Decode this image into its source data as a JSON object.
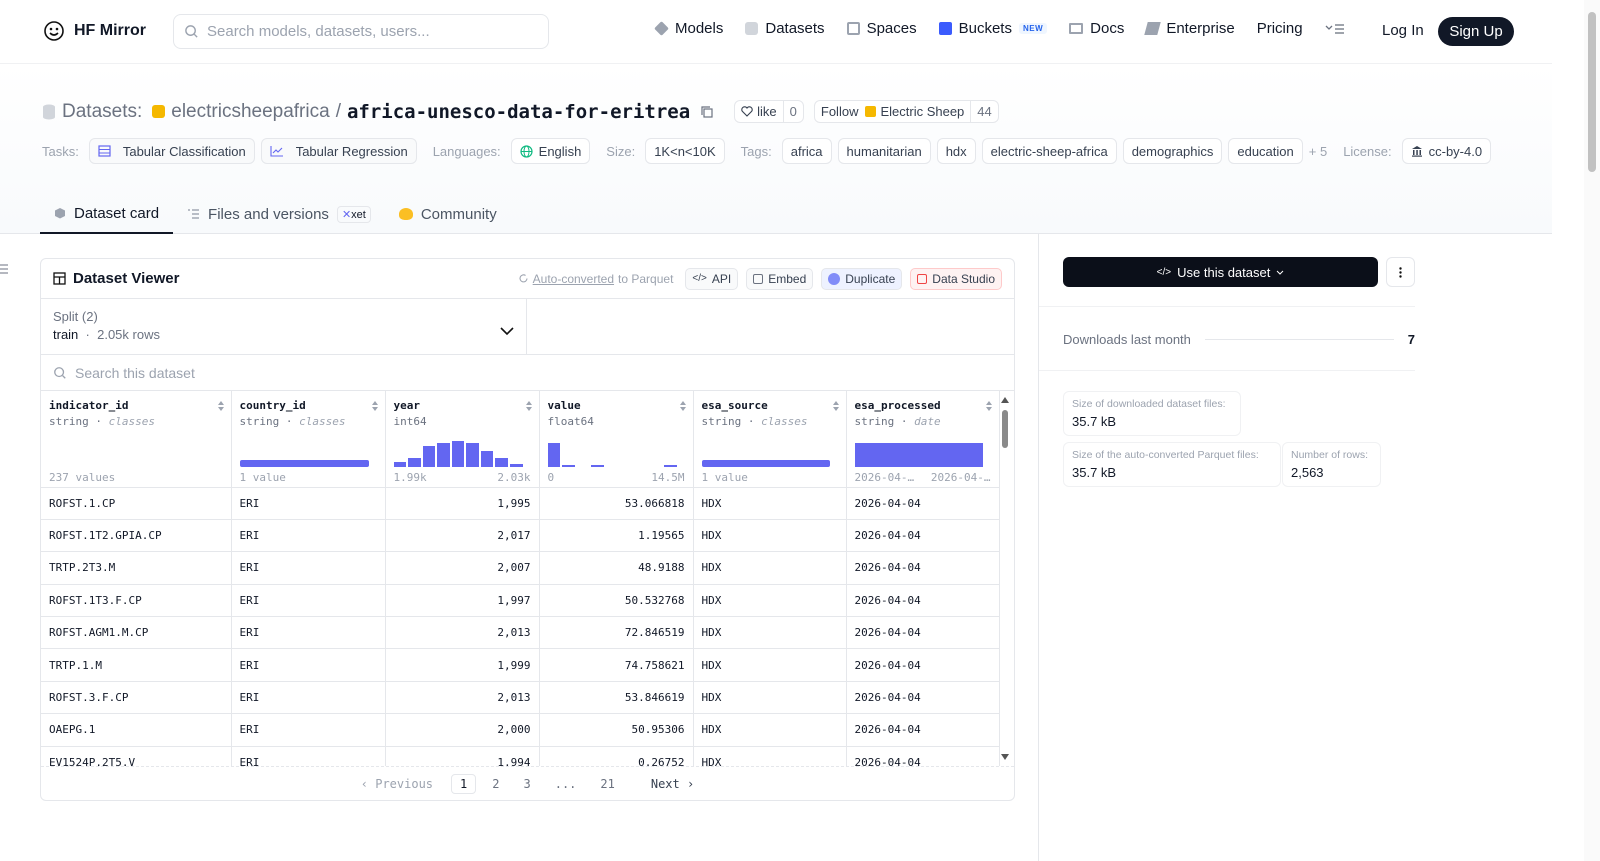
{
  "nav": {
    "brand": "HF Mirror",
    "search_placeholder": "Search models, datasets, users...",
    "links": [
      {
        "label": "Models",
        "icon": "models-icon"
      },
      {
        "label": "Datasets",
        "icon": "datasets-icon"
      },
      {
        "label": "Spaces",
        "icon": "spaces-icon"
      },
      {
        "label": "Buckets",
        "icon": "buckets-icon",
        "badge": "NEW"
      },
      {
        "label": "Docs",
        "icon": "docs-icon"
      },
      {
        "label": "Enterprise",
        "icon": "enterprise-icon"
      },
      {
        "label": "Pricing"
      }
    ],
    "login": "Log In",
    "signup": "Sign Up"
  },
  "header": {
    "section_label": "Datasets:",
    "owner": "electricsheepafrica",
    "separator": "/",
    "name": "africa-unesco-data-for-eritrea",
    "like_label": "like",
    "like_count": "0",
    "follow_label": "Follow",
    "follow_org": "Electric Sheep",
    "follow_count": "44"
  },
  "tags": {
    "tasks_label": "Tasks:",
    "tasks": [
      "Tabular Classification",
      "Tabular Regression"
    ],
    "languages_label": "Languages:",
    "language": "English",
    "size_label": "Size:",
    "size": "1K<n<10K",
    "tags_label": "Tags:",
    "tags": [
      "africa",
      "humanitarian",
      "hdx",
      "electric-sheep-africa",
      "demographics",
      "education"
    ],
    "more": "+ 5",
    "license_label": "License:",
    "license": "cc-by-4.0"
  },
  "tabs": [
    {
      "label": "Dataset card",
      "active": true
    },
    {
      "label": "Files and versions",
      "badge": "xet"
    },
    {
      "label": "Community"
    }
  ],
  "viewer": {
    "title": "Dataset Viewer",
    "auto_converted": "Auto-converted",
    "to_parquet": "to Parquet",
    "api": "API",
    "embed": "Embed",
    "duplicate": "Duplicate",
    "data_studio": "Data Studio",
    "split_label": "Split (2)",
    "split_name": "train",
    "split_rows": "2.05k rows",
    "search_placeholder": "Search this dataset",
    "columns": [
      {
        "name": "indicator_id",
        "type": "string",
        "kind": "classes",
        "foot_left": "237 values",
        "foot_right": ""
      },
      {
        "name": "country_id",
        "type": "string",
        "kind": "classes",
        "foot_left": "1 value",
        "foot_right": ""
      },
      {
        "name": "year",
        "type": "int64",
        "kind": "",
        "foot_left": "1.99k",
        "foot_right": "2.03k"
      },
      {
        "name": "value",
        "type": "float64",
        "kind": "",
        "foot_left": "0",
        "foot_right": "14.5M"
      },
      {
        "name": "esa_source",
        "type": "string",
        "kind": "classes",
        "foot_left": "1 value",
        "foot_right": ""
      },
      {
        "name": "esa_processed",
        "type": "string",
        "kind": "date",
        "foot_left": "2026-04-…",
        "foot_right": "2026-04-…"
      }
    ],
    "year_hist": [
      0.15,
      0.3,
      0.75,
      0.85,
      0.9,
      0.85,
      0.55,
      0.3,
      0.1
    ],
    "value_hist": [
      0.85,
      0.06,
      0.0,
      0.05,
      0.0,
      0.0,
      0.0,
      0.0,
      0.04
    ],
    "rows": [
      [
        "ROFST.1.CP",
        "ERI",
        "1,995",
        "53.066818",
        "HDX",
        "2026-04-04"
      ],
      [
        "ROFST.1T2.GPIA.CP",
        "ERI",
        "2,017",
        "1.19565",
        "HDX",
        "2026-04-04"
      ],
      [
        "TRTP.2T3.M",
        "ERI",
        "2,007",
        "48.9188",
        "HDX",
        "2026-04-04"
      ],
      [
        "ROFST.1T3.F.CP",
        "ERI",
        "1,997",
        "50.532768",
        "HDX",
        "2026-04-04"
      ],
      [
        "ROFST.AGM1.M.CP",
        "ERI",
        "2,013",
        "72.846519",
        "HDX",
        "2026-04-04"
      ],
      [
        "TRTP.1.M",
        "ERI",
        "1,999",
        "74.758621",
        "HDX",
        "2026-04-04"
      ],
      [
        "ROFST.3.F.CP",
        "ERI",
        "2,013",
        "53.846619",
        "HDX",
        "2026-04-04"
      ],
      [
        "OAEPG.1",
        "ERI",
        "2,000",
        "50.95306",
        "HDX",
        "2026-04-04"
      ],
      [
        "EV1524P.2T5.V",
        "ERI",
        "1,994",
        "0.26752",
        "HDX",
        "2026-04-04"
      ]
    ],
    "pager": {
      "prev": "Previous",
      "pages": [
        "1",
        "2",
        "3",
        "...",
        "21"
      ],
      "next": "Next"
    }
  },
  "sidebar": {
    "use_dataset": "Use this dataset",
    "downloads_label": "Downloads last month",
    "downloads_value": "7",
    "stats": [
      {
        "label": "Size of downloaded dataset files:",
        "value": "35.7 kB"
      },
      {
        "label": "Size of the auto-converted Parquet files:",
        "value": "35.7 kB"
      },
      {
        "label": "Number of rows:",
        "value": "2,563"
      }
    ]
  }
}
